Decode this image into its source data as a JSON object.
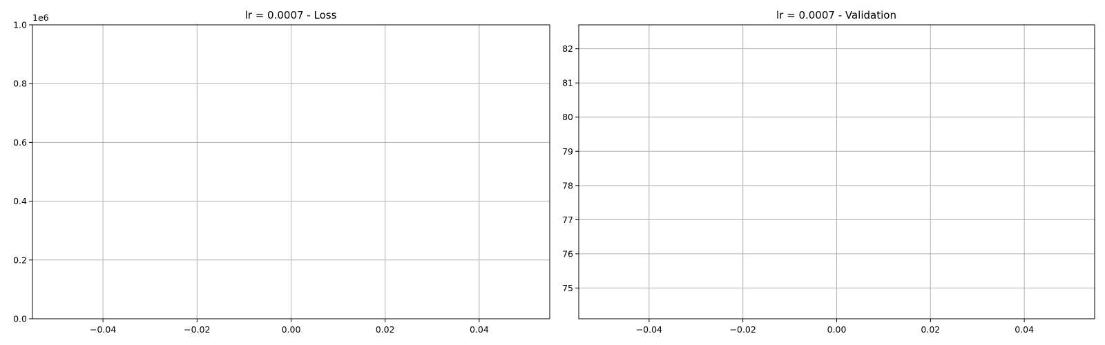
{
  "chart_data": [
    {
      "type": "line",
      "title": "lr = 0.0007 - Loss",
      "xlabel": "",
      "ylabel": "",
      "xlim": [
        -0.055,
        0.055
      ],
      "ylim": [
        0,
        1.0
      ],
      "x_ticks": [
        -0.04,
        -0.02,
        0.0,
        0.02,
        0.04
      ],
      "x_tick_labels": [
        "−0.04",
        "−0.02",
        "0.00",
        "0.02",
        "0.04"
      ],
      "y_ticks": [
        0.0,
        0.2,
        0.4,
        0.6,
        0.8,
        1.0
      ],
      "y_tick_labels": [
        "0.0",
        "0.2",
        "0.4",
        "0.6",
        "0.8",
        "1.0"
      ],
      "y_offset_text": "1e6",
      "grid": true,
      "series": [
        {
          "values": []
        }
      ]
    },
    {
      "type": "line",
      "title": "lr = 0.0007 - Validation",
      "xlabel": "",
      "ylabel": "",
      "xlim": [
        -0.055,
        0.055
      ],
      "ylim": [
        74.1,
        82.7
      ],
      "x_ticks": [
        -0.04,
        -0.02,
        0.0,
        0.02,
        0.04
      ],
      "x_tick_labels": [
        "−0.04",
        "−0.02",
        "0.00",
        "0.02",
        "0.04"
      ],
      "y_ticks": [
        75,
        76,
        77,
        78,
        79,
        80,
        81,
        82
      ],
      "y_tick_labels": [
        "75",
        "76",
        "77",
        "78",
        "79",
        "80",
        "81",
        "82"
      ],
      "grid": true,
      "series": [
        {
          "values": []
        }
      ]
    }
  ]
}
